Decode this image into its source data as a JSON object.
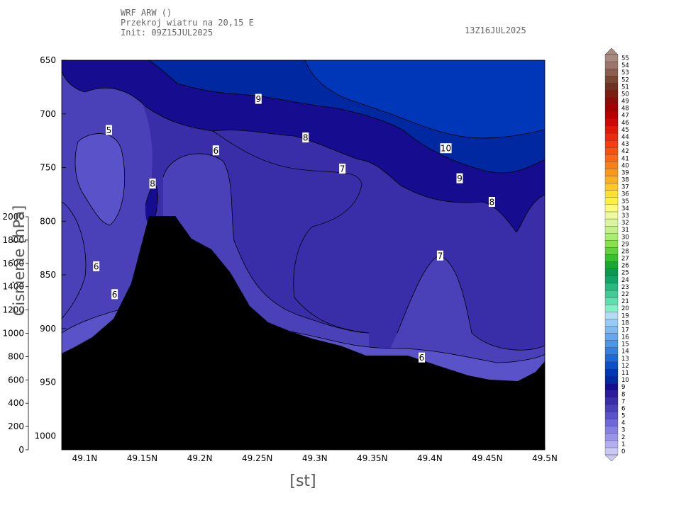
{
  "header": {
    "line1": "WRF ARW ()",
    "line2": "Przekroj wiatru na 20,15 E",
    "line3": "Init: 09Z15JUL2025"
  },
  "valid_time": "13Z16JUL2025",
  "chart_data": {
    "type": "contour",
    "xlabel": "[st]",
    "ylabel": "Cisnienie [hPa]",
    "x_ticks": [
      "49.1N",
      "49.15N",
      "49.2N",
      "49.25N",
      "49.3N",
      "49.35N",
      "49.4N",
      "49.45N",
      "49.5N"
    ],
    "x_range": [
      49.08,
      49.5
    ],
    "y_pressure_ticks": [
      "650",
      "700",
      "750",
      "800",
      "850",
      "900",
      "950",
      "1000"
    ],
    "y_pressure_range": [
      650,
      1013
    ],
    "y_height_ticks": [
      "0",
      "200",
      "400",
      "600",
      "800",
      "1000",
      "1200",
      "1400",
      "1600",
      "1800",
      "2000"
    ],
    "contour_labels": [
      {
        "text": "5",
        "lat": 49.121,
        "p": 715
      },
      {
        "text": "6",
        "lat": 49.214,
        "p": 734
      },
      {
        "text": "6",
        "lat": 49.11,
        "p": 842
      },
      {
        "text": "6",
        "lat": 49.126,
        "p": 868
      },
      {
        "text": "6",
        "lat": 49.393,
        "p": 927
      },
      {
        "text": "7",
        "lat": 49.324,
        "p": 751
      },
      {
        "text": "7",
        "lat": 49.409,
        "p": 832
      },
      {
        "text": "8",
        "lat": 49.292,
        "p": 722
      },
      {
        "text": "8",
        "lat": 49.454,
        "p": 782
      },
      {
        "text": "8",
        "lat": 49.159,
        "p": 765
      },
      {
        "text": "9",
        "lat": 49.251,
        "p": 686
      },
      {
        "text": "9",
        "lat": 49.426,
        "p": 760
      },
      {
        "text": "10",
        "lat": 49.414,
        "p": 732
      }
    ],
    "colorbar": {
      "labels": [
        "0",
        "1",
        "2",
        "3",
        "4",
        "5",
        "6",
        "7",
        "8",
        "9",
        "10",
        "11",
        "12",
        "13",
        "14",
        "15",
        "16",
        "17",
        "18",
        "19",
        "20",
        "21",
        "22",
        "23",
        "24",
        "25",
        "26",
        "27",
        "28",
        "29",
        "30",
        "31",
        "32",
        "33",
        "34",
        "35",
        "36",
        "37",
        "38",
        "39",
        "40",
        "41",
        "42",
        "43",
        "44",
        "45",
        "46",
        "47",
        "48",
        "49",
        "50",
        "51",
        "52",
        "53",
        "54",
        "55"
      ],
      "colors": [
        "#ccc8f6",
        "#b3aef0",
        "#9a94e8",
        "#8680e0",
        "#6f68d8",
        "#5a52c8",
        "#4a40b8",
        "#3a2ea8",
        "#2a1c9c",
        "#160c90",
        "#0028a0",
        "#0036b8",
        "#0a50cc",
        "#1e68d8",
        "#3380e0",
        "#4c96e8",
        "#64a8ee",
        "#7ebaf2",
        "#98caf6",
        "#b2dcf6",
        "#80f0c8",
        "#5ee0b0",
        "#40cc98",
        "#28b880",
        "#14a468",
        "#0c9850",
        "#18a830",
        "#38c030",
        "#60d040",
        "#88e050",
        "#a8ec70",
        "#c4f08c",
        "#dcf4a0",
        "#eef8a0",
        "#fcfc78",
        "#fcf040",
        "#fce030",
        "#fcc828",
        "#fcb020",
        "#fc9818",
        "#fc8018",
        "#fc6818",
        "#fc5010",
        "#f83c10",
        "#f02810",
        "#e01808",
        "#cc0808",
        "#b80000",
        "#a00000",
        "#8c0c0c",
        "#7a1e10",
        "#6e3020",
        "#7a4634",
        "#8c5e4e",
        "#9c766a",
        "#a88a80"
      ]
    }
  }
}
